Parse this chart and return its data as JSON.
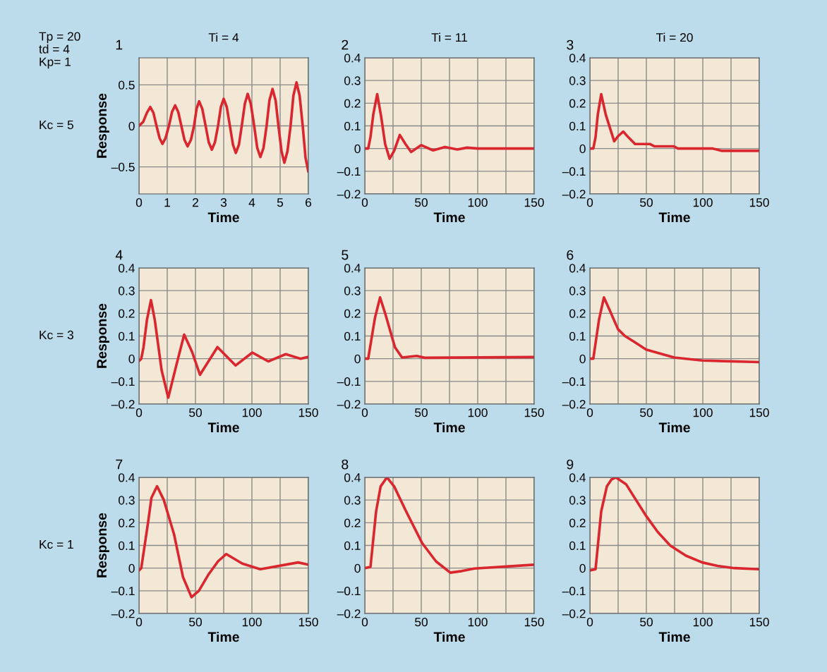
{
  "chart_data": [
    {
      "type": "line",
      "title": "1",
      "subtitle": "Ti = 4",
      "ylabel": "Response",
      "xlabel": "Time",
      "annotations": [
        "Tp = 20",
        "td = 4",
        "Kp= 1",
        "Kc = 5"
      ],
      "xlim": [
        0,
        6
      ],
      "ylim": [
        -0.83,
        0.83
      ],
      "xticks": [
        0,
        1,
        2,
        3,
        4,
        5,
        6
      ],
      "yticks": [
        {
          "value": -0.5,
          "label": "–0.5"
        },
        0,
        0.5
      ],
      "grid": true,
      "series": [
        {
          "color": "#d9262f",
          "x": [
            0,
            0.15,
            0.28,
            0.4,
            0.51,
            0.62,
            0.73,
            0.83,
            0.94,
            1.06,
            1.17,
            1.28,
            1.39,
            1.5,
            1.61,
            1.72,
            1.84,
            1.95,
            2.04,
            2.13,
            2.24,
            2.36,
            2.47,
            2.58,
            2.69,
            2.8,
            2.9,
            3.0,
            3.11,
            3.22,
            3.33,
            3.43,
            3.54,
            3.64,
            3.75,
            3.85,
            3.96,
            4.08,
            4.19,
            4.3,
            4.41,
            4.52,
            4.62,
            4.73,
            4.84,
            4.94,
            5.05,
            5.15,
            5.26,
            5.37,
            5.47,
            5.58,
            5.69,
            5.8,
            5.9,
            6
          ],
          "values": [
            0,
            0.05,
            0.16,
            0.23,
            0.16,
            0,
            -0.15,
            -0.22,
            -0.15,
            0,
            0.17,
            0.25,
            0.17,
            0,
            -0.17,
            -0.25,
            -0.17,
            0,
            0.21,
            0.3,
            0.21,
            0,
            -0.2,
            -0.29,
            -0.2,
            0,
            0.23,
            0.33,
            0.23,
            0,
            -0.23,
            -0.33,
            -0.23,
            0,
            0.27,
            0.39,
            0.27,
            0,
            -0.27,
            -0.38,
            -0.27,
            0,
            0.31,
            0.45,
            0.31,
            0,
            -0.31,
            -0.45,
            -0.31,
            0,
            0.37,
            0.53,
            0.37,
            0,
            -0.39,
            -0.56
          ]
        }
      ]
    },
    {
      "type": "line",
      "title": "2",
      "subtitle": "Ti = 11",
      "xlabel": "Time",
      "xlim": [
        0,
        150
      ],
      "ylim": [
        -0.2,
        0.4
      ],
      "xticks": [
        0,
        {
          "value": 25,
          "label": null
        },
        50,
        {
          "value": 75,
          "label": null
        },
        100,
        {
          "value": 125,
          "label": null
        },
        150
      ],
      "yticks": [
        {
          "value": -0.2,
          "label": "–0.2"
        },
        {
          "value": -0.1,
          "label": "–0.1"
        },
        0,
        0.1,
        0.2,
        0.3,
        0.4
      ],
      "grid": true,
      "series": [
        {
          "color": "#d9262f",
          "x": [
            0,
            3,
            5,
            7.5,
            11,
            14.5,
            18,
            22,
            26,
            31,
            36,
            41,
            50,
            60.5,
            71,
            82,
            90.5,
            100,
            150
          ],
          "values": [
            0,
            0,
            0.05,
            0.15,
            0.24,
            0.14,
            0.02,
            -0.045,
            -0.01,
            0.06,
            0.02,
            -0.015,
            0.015,
            -0.008,
            0.007,
            -0.004,
            0.004,
            0,
            0
          ]
        }
      ]
    },
    {
      "type": "line",
      "title": "3",
      "subtitle": "Ti = 20",
      "xlabel": "Time",
      "xlim": [
        0,
        150
      ],
      "ylim": [
        -0.2,
        0.4
      ],
      "xticks": [
        0,
        {
          "value": 25,
          "label": null
        },
        50,
        {
          "value": 75,
          "label": null
        },
        100,
        {
          "value": 125,
          "label": null
        },
        150
      ],
      "yticks": [
        {
          "value": -0.2,
          "label": "–0.2"
        },
        {
          "value": -0.1,
          "label": "–0.1"
        },
        0,
        0.1,
        0.2,
        0.3,
        0.4
      ],
      "grid": true,
      "series": [
        {
          "color": "#d9262f",
          "x": [
            0,
            3,
            5,
            7,
            10,
            14,
            21.5,
            25,
            29.5,
            34,
            40,
            53,
            57,
            74,
            78,
            109,
            117,
            150
          ],
          "values": [
            0,
            0,
            0.05,
            0.15,
            0.24,
            0.15,
            0.032,
            0.055,
            0.075,
            0.05,
            0.02,
            0.02,
            0.01,
            0.01,
            0,
            0,
            -0.01,
            -0.01
          ]
        }
      ]
    },
    {
      "type": "line",
      "title": "4",
      "ylabel": "Response",
      "xlabel": "Time",
      "annotations": [
        "Kc = 3"
      ],
      "xlim": [
        0,
        150
      ],
      "ylim": [
        -0.2,
        0.4
      ],
      "xticks": [
        0,
        {
          "value": 25,
          "label": null
        },
        50,
        {
          "value": 75,
          "label": null
        },
        100,
        {
          "value": 125,
          "label": null
        },
        150
      ],
      "yticks": [
        {
          "value": -0.2,
          "label": "–0.2"
        },
        {
          "value": -0.1,
          "label": "–0.1"
        },
        0,
        0.1,
        0.2,
        0.3,
        0.4
      ],
      "grid": true,
      "series": [
        {
          "color": "#d9262f",
          "x": [
            0,
            2,
            4,
            7,
            10.6,
            14,
            20,
            25.9,
            33,
            40,
            47,
            54,
            69.5,
            85.5,
            100.4,
            114.5,
            130,
            143,
            150
          ],
          "values": [
            -0.01,
            0,
            0.05,
            0.17,
            0.258,
            0.17,
            -0.05,
            -0.172,
            -0.03,
            0.106,
            0.03,
            -0.071,
            0.051,
            -0.03,
            0.027,
            -0.012,
            0.02,
            0,
            0.008
          ]
        }
      ]
    },
    {
      "type": "line",
      "title": "5",
      "xlabel": "Time",
      "xlim": [
        0,
        150
      ],
      "ylim": [
        -0.2,
        0.4
      ],
      "xticks": [
        0,
        {
          "value": 25,
          "label": null
        },
        50,
        {
          "value": 75,
          "label": null
        },
        100,
        {
          "value": 125,
          "label": null
        },
        150
      ],
      "yticks": [
        {
          "value": -0.2,
          "label": "–0.2"
        },
        {
          "value": -0.1,
          "label": "–0.1"
        },
        0,
        0.1,
        0.2,
        0.3,
        0.4
      ],
      "grid": true,
      "series": [
        {
          "color": "#d9262f",
          "x": [
            0,
            3,
            9,
            13.5,
            18,
            26.7,
            33,
            46,
            53,
            150
          ],
          "values": [
            0,
            0,
            0.18,
            0.27,
            0.2,
            0.05,
            0.005,
            0.012,
            0.004,
            0.007
          ]
        }
      ]
    },
    {
      "type": "line",
      "title": "6",
      "xlabel": "Time",
      "xlim": [
        0,
        150
      ],
      "ylim": [
        -0.2,
        0.4
      ],
      "xticks": [
        0,
        {
          "value": 25,
          "label": null
        },
        50,
        {
          "value": 75,
          "label": null
        },
        100,
        {
          "value": 125,
          "label": null
        },
        150
      ],
      "yticks": [
        {
          "value": -0.2,
          "label": "–0.2"
        },
        {
          "value": -0.1,
          "label": "–0.1"
        },
        0,
        0.1,
        0.2,
        0.3,
        0.4
      ],
      "grid": true,
      "series": [
        {
          "color": "#d9262f",
          "x": [
            0,
            3,
            8,
            12.4,
            17,
            24.9,
            31,
            39,
            49.8,
            74.6,
            99.5,
            150
          ],
          "values": [
            0,
            0,
            0.17,
            0.27,
            0.22,
            0.13,
            0.1,
            0.075,
            0.04,
            0.005,
            -0.008,
            -0.015
          ]
        }
      ]
    },
    {
      "type": "line",
      "title": "7",
      "ylabel": "Response",
      "xlabel": "Time",
      "annotations": [
        "Kc = 1"
      ],
      "xlim": [
        0,
        150
      ],
      "ylim": [
        -0.2,
        0.4
      ],
      "xticks": [
        0,
        {
          "value": 25,
          "label": null
        },
        50,
        {
          "value": 75,
          "label": null
        },
        100,
        {
          "value": 125,
          "label": null
        },
        150
      ],
      "yticks": [
        {
          "value": -0.2,
          "label": "–0.2"
        },
        {
          "value": -0.1,
          "label": "–0.1"
        },
        0,
        0.1,
        0.2,
        0.3,
        0.4
      ],
      "grid": true,
      "series": [
        {
          "color": "#d9262f",
          "x": [
            0,
            2,
            8,
            11,
            16,
            22,
            31,
            39,
            46.5,
            53,
            61.3,
            70,
            77.3,
            91.5,
            107.4,
            141,
            150
          ],
          "values": [
            -0.01,
            0,
            0.2,
            0.31,
            0.361,
            0.3,
            0.15,
            -0.04,
            -0.128,
            -0.1,
            -0.03,
            0.03,
            0.062,
            0.02,
            -0.005,
            0.025,
            0.015
          ]
        }
      ]
    },
    {
      "type": "line",
      "title": "8",
      "xlabel": "Time",
      "xlim": [
        0,
        150
      ],
      "ylim": [
        -0.2,
        0.4
      ],
      "xticks": [
        0,
        {
          "value": 25,
          "label": null
        },
        50,
        {
          "value": 75,
          "label": null
        },
        100,
        {
          "value": 125,
          "label": null
        },
        150
      ],
      "yticks": [
        {
          "value": -0.2,
          "label": "–0.2"
        },
        {
          "value": -0.1,
          "label": "–0.1"
        },
        0,
        0.1,
        0.2,
        0.3,
        0.4
      ],
      "grid": true,
      "series": [
        {
          "color": "#d9262f",
          "x": [
            0,
            5,
            10,
            14,
            19.6,
            26,
            36.6,
            50.8,
            63,
            75.7,
            86,
            97,
            150
          ],
          "values": [
            0,
            0.005,
            0.25,
            0.36,
            0.4,
            0.36,
            0.25,
            0.11,
            0.03,
            -0.02,
            -0.013,
            -0.002,
            0.015
          ]
        }
      ]
    },
    {
      "type": "line",
      "title": "9",
      "xlabel": "Time",
      "xlim": [
        0,
        150
      ],
      "ylim": [
        -0.2,
        0.4
      ],
      "xticks": [
        0,
        {
          "value": 25,
          "label": null
        },
        50,
        {
          "value": 75,
          "label": null
        },
        100,
        {
          "value": 125,
          "label": null
        },
        150
      ],
      "yticks": [
        {
          "value": -0.2,
          "label": "–0.2"
        },
        {
          "value": -0.1,
          "label": "–0.1"
        },
        0,
        0.1,
        0.2,
        0.3,
        0.4
      ],
      "grid": true,
      "series": [
        {
          "color": "#d9262f",
          "x": [
            0,
            5,
            10,
            15,
            19,
            23,
            32,
            49.8,
            60,
            71,
            85,
            99.5,
            113,
            128,
            150
          ],
          "values": [
            -0.01,
            -0.005,
            0.25,
            0.36,
            0.39,
            0.4,
            0.37,
            0.23,
            0.16,
            0.1,
            0.055,
            0.025,
            0.01,
            0,
            -0.005
          ]
        }
      ]
    }
  ]
}
